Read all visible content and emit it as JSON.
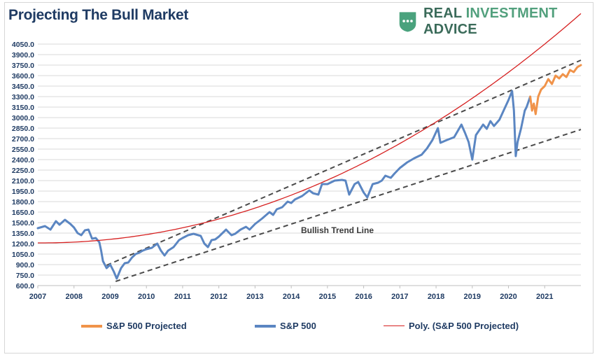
{
  "header": {
    "title": "Projecting The Bull Market",
    "brand": {
      "part1": "REAL ",
      "part2": "INVESTMENT",
      "part3": " ADVICE"
    }
  },
  "colors": {
    "sp500": "#5b86c2",
    "projected": "#f0934a",
    "poly": "#d62020",
    "channel": "#4a4a4a",
    "grid": "#d9d9d9",
    "axis_text": "#1f3b63",
    "brand_icon": "#4aa27d"
  },
  "chart_data": {
    "type": "line",
    "title": "Projecting The Bull Market",
    "ylim": [
      600,
      4050
    ],
    "y_ticks": [
      "4050.0",
      "3900.0",
      "3750.0",
      "3600.0",
      "3450.0",
      "3300.0",
      "3150.0",
      "3000.0",
      "2850.0",
      "2700.0",
      "2550.0",
      "2400.0",
      "2250.0",
      "2100.0",
      "1950.0",
      "1800.0",
      "1650.0",
      "1500.0",
      "1350.0",
      "1200.0",
      "1050.0",
      "900.0",
      "750.0",
      "600.0"
    ],
    "x_range": [
      2007.0,
      2022.0
    ],
    "x_ticks": [
      "2007",
      "2008",
      "2009",
      "2010",
      "2011",
      "2012",
      "2013",
      "2014",
      "2015",
      "2016",
      "2017",
      "2018",
      "2019",
      "2020",
      "2021"
    ],
    "grid": true,
    "legend_position": "bottom",
    "annotation": "Bullish Trend Line",
    "series": [
      {
        "name": "S&P 500",
        "color": "#5b86c2",
        "points": [
          [
            2007.0,
            1420
          ],
          [
            2007.2,
            1450
          ],
          [
            2007.35,
            1400
          ],
          [
            2007.5,
            1520
          ],
          [
            2007.6,
            1470
          ],
          [
            2007.75,
            1540
          ],
          [
            2007.9,
            1480
          ],
          [
            2008.0,
            1430
          ],
          [
            2008.1,
            1350
          ],
          [
            2008.2,
            1320
          ],
          [
            2008.3,
            1390
          ],
          [
            2008.4,
            1400
          ],
          [
            2008.5,
            1270
          ],
          [
            2008.6,
            1280
          ],
          [
            2008.7,
            1220
          ],
          [
            2008.75,
            1100
          ],
          [
            2008.8,
            950
          ],
          [
            2008.85,
            900
          ],
          [
            2008.9,
            850
          ],
          [
            2009.0,
            900
          ],
          [
            2009.1,
            800
          ],
          [
            2009.18,
            700
          ],
          [
            2009.3,
            850
          ],
          [
            2009.4,
            920
          ],
          [
            2009.5,
            930
          ],
          [
            2009.6,
            1000
          ],
          [
            2009.7,
            1050
          ],
          [
            2009.8,
            1070
          ],
          [
            2009.9,
            1100
          ],
          [
            2010.0,
            1120
          ],
          [
            2010.15,
            1140
          ],
          [
            2010.3,
            1200
          ],
          [
            2010.4,
            1100
          ],
          [
            2010.5,
            1030
          ],
          [
            2010.6,
            1100
          ],
          [
            2010.75,
            1150
          ],
          [
            2010.9,
            1250
          ],
          [
            2011.0,
            1280
          ],
          [
            2011.15,
            1320
          ],
          [
            2011.3,
            1340
          ],
          [
            2011.5,
            1310
          ],
          [
            2011.6,
            1200
          ],
          [
            2011.7,
            1150
          ],
          [
            2011.8,
            1250
          ],
          [
            2011.9,
            1260
          ],
          [
            2012.0,
            1300
          ],
          [
            2012.2,
            1400
          ],
          [
            2012.35,
            1320
          ],
          [
            2012.45,
            1340
          ],
          [
            2012.6,
            1400
          ],
          [
            2012.75,
            1440
          ],
          [
            2012.85,
            1400
          ],
          [
            2013.0,
            1480
          ],
          [
            2013.2,
            1560
          ],
          [
            2013.4,
            1650
          ],
          [
            2013.5,
            1610
          ],
          [
            2013.6,
            1690
          ],
          [
            2013.75,
            1720
          ],
          [
            2013.9,
            1800
          ],
          [
            2014.0,
            1780
          ],
          [
            2014.1,
            1830
          ],
          [
            2014.3,
            1880
          ],
          [
            2014.5,
            1960
          ],
          [
            2014.6,
            1920
          ],
          [
            2014.75,
            1900
          ],
          [
            2014.85,
            2050
          ],
          [
            2015.0,
            2050
          ],
          [
            2015.2,
            2100
          ],
          [
            2015.4,
            2110
          ],
          [
            2015.5,
            2100
          ],
          [
            2015.6,
            1900
          ],
          [
            2015.75,
            2050
          ],
          [
            2015.85,
            2080
          ],
          [
            2016.0,
            1930
          ],
          [
            2016.1,
            1860
          ],
          [
            2016.25,
            2050
          ],
          [
            2016.4,
            2070
          ],
          [
            2016.5,
            2100
          ],
          [
            2016.6,
            2170
          ],
          [
            2016.75,
            2140
          ],
          [
            2016.85,
            2200
          ],
          [
            2017.0,
            2280
          ],
          [
            2017.2,
            2360
          ],
          [
            2017.4,
            2420
          ],
          [
            2017.6,
            2470
          ],
          [
            2017.75,
            2560
          ],
          [
            2017.9,
            2680
          ],
          [
            2018.05,
            2850
          ],
          [
            2018.12,
            2640
          ],
          [
            2018.3,
            2680
          ],
          [
            2018.5,
            2720
          ],
          [
            2018.7,
            2900
          ],
          [
            2018.8,
            2780
          ],
          [
            2018.9,
            2650
          ],
          [
            2019.0,
            2400
          ],
          [
            2019.1,
            2750
          ],
          [
            2019.3,
            2900
          ],
          [
            2019.4,
            2840
          ],
          [
            2019.5,
            2950
          ],
          [
            2019.6,
            2880
          ],
          [
            2019.75,
            2970
          ],
          [
            2019.9,
            3140
          ],
          [
            2020.0,
            3250
          ],
          [
            2020.1,
            3380
          ],
          [
            2020.15,
            3100
          ],
          [
            2020.2,
            2450
          ],
          [
            2020.25,
            2650
          ],
          [
            2020.35,
            2850
          ],
          [
            2020.45,
            3100
          ],
          [
            2020.5,
            3150
          ],
          [
            2020.6,
            3300
          ]
        ]
      },
      {
        "name": "S&P 500 Projected",
        "color": "#f0934a",
        "points": [
          [
            2020.6,
            3300
          ],
          [
            2020.65,
            3100
          ],
          [
            2020.7,
            3200
          ],
          [
            2020.75,
            3050
          ],
          [
            2020.82,
            3300
          ],
          [
            2020.9,
            3400
          ],
          [
            2021.0,
            3450
          ],
          [
            2021.1,
            3550
          ],
          [
            2021.2,
            3480
          ],
          [
            2021.3,
            3600
          ],
          [
            2021.4,
            3560
          ],
          [
            2021.5,
            3620
          ],
          [
            2021.6,
            3580
          ],
          [
            2021.7,
            3680
          ],
          [
            2021.8,
            3650
          ],
          [
            2021.9,
            3720
          ],
          [
            2022.0,
            3750
          ]
        ]
      },
      {
        "name": "Poly. (S&P 500 Projected)",
        "color": "#d62020",
        "poly": [
          1210,
          -2.5,
          13.9,
          0.055
        ]
      }
    ]
  },
  "legend": {
    "projected": "S&P 500 Projected",
    "sp500": "S&P 500",
    "poly": "Poly. (S&P 500 Projected)"
  }
}
